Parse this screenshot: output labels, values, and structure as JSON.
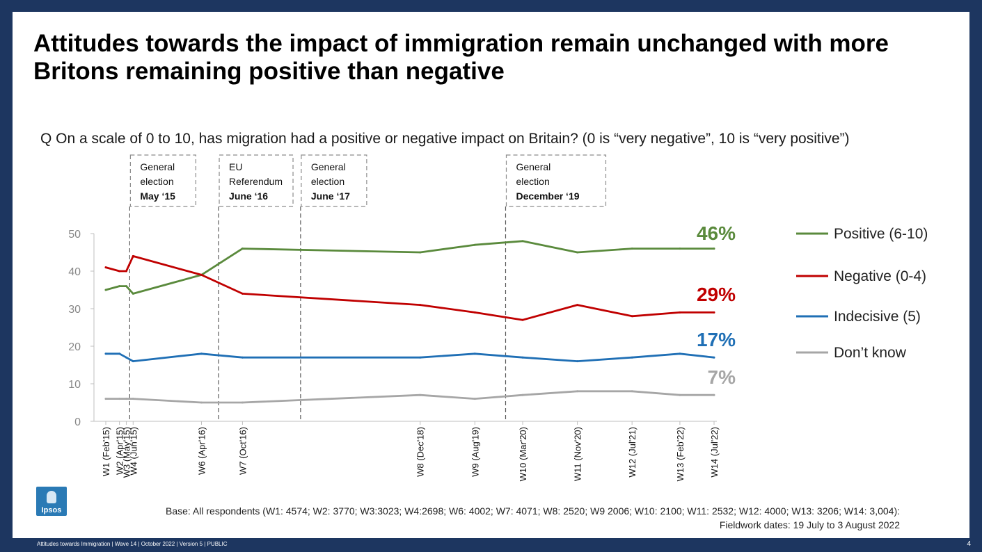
{
  "title": "Attitudes towards the impact of immigration remain unchanged with more Britons remaining positive than negative",
  "question": "Q On a scale of 0 to 10, has migration had a positive or negative impact on Britain? (0 is “very negative”, 10 is “very positive”)",
  "base_note": "Base: All respondents (W1: 4574; W2: 3770; W3:3023; W4:2698; W6: 4002; W7: 4071; W8: 2520; W9 2006; W10: 2100; W11: 2532; W12: 4000; W13: 3206; W14: 3,004):",
  "fieldwork": "Fieldwork dates: 19 July to 3 August 2022",
  "logo_text": "Ipsos",
  "footer": "Attitudes towards Immigration | Wave 14 | October 2022 | Version 5 | PUBLIC",
  "page_number": "4",
  "colors": {
    "positive": "#5a8a3c",
    "negative": "#c00000",
    "indecisive": "#1f6fb5",
    "dont_know": "#a6a6a6",
    "background": "#1d3660"
  },
  "chart_data": {
    "type": "line",
    "title": "",
    "xlabel": "",
    "ylabel": "",
    "ylim": [
      0,
      50
    ],
    "yticks": [
      0,
      10,
      20,
      30,
      40,
      50
    ],
    "grid": false,
    "legend_position": "right",
    "categories": [
      {
        "label": "W1 (Feb'15)",
        "t": 0
      },
      {
        "label": "W2 (Apr'15)",
        "t": 2
      },
      {
        "label": "W3 (May'15)",
        "t": 3
      },
      {
        "label": "W4 (Jun'15)",
        "t": 4
      },
      {
        "label": "W6 (Apr'16)",
        "t": 14
      },
      {
        "label": "W7 (Oct'16)",
        "t": 20
      },
      {
        "label": "W8 (Dec'18)",
        "t": 46
      },
      {
        "label": "W9 (Aug'19)",
        "t": 54
      },
      {
        "label": "W10 (Mar'20)",
        "t": 61
      },
      {
        "label": "W11 (Nov'20)",
        "t": 69
      },
      {
        "label": "W12 (Jul'21)",
        "t": 77
      },
      {
        "label": "W13 (Feb'22)",
        "t": 84
      },
      {
        "label": "W14 (Jul'22)",
        "t": 89
      }
    ],
    "series": [
      {
        "name": "Positive (6-10)",
        "color": "#5a8a3c",
        "values": [
          35,
          36,
          36,
          34,
          39,
          46,
          45,
          47,
          48,
          45,
          46,
          46,
          46
        ],
        "end_label": "46%"
      },
      {
        "name": "Negative (0-4)",
        "color": "#c00000",
        "values": [
          41,
          40,
          40,
          44,
          39,
          34,
          31,
          29,
          27,
          31,
          28,
          29,
          29
        ],
        "end_label": "29%"
      },
      {
        "name": "Indecisive (5)",
        "color": "#1f6fb5",
        "values": [
          18,
          18,
          17,
          16,
          18,
          17,
          17,
          18,
          17,
          16,
          17,
          18,
          17
        ],
        "end_label": "17%"
      },
      {
        "name": "Don’t know",
        "color": "#a6a6a6",
        "values": [
          6,
          6,
          6,
          6,
          5,
          5,
          7,
          6,
          7,
          8,
          8,
          7,
          7
        ],
        "end_label": "7%"
      }
    ],
    "events": [
      {
        "t": 3.5,
        "lines": [
          "General",
          "election"
        ],
        "bold": "May ‘15"
      },
      {
        "t": 16.5,
        "lines": [
          "EU",
          "Referendum"
        ],
        "bold": "June ‘16"
      },
      {
        "t": 28.5,
        "lines": [
          "General",
          "election"
        ],
        "bold": "June ‘17"
      },
      {
        "t": 58.5,
        "lines": [
          "General",
          "election"
        ],
        "bold": "December ‘19"
      }
    ]
  }
}
